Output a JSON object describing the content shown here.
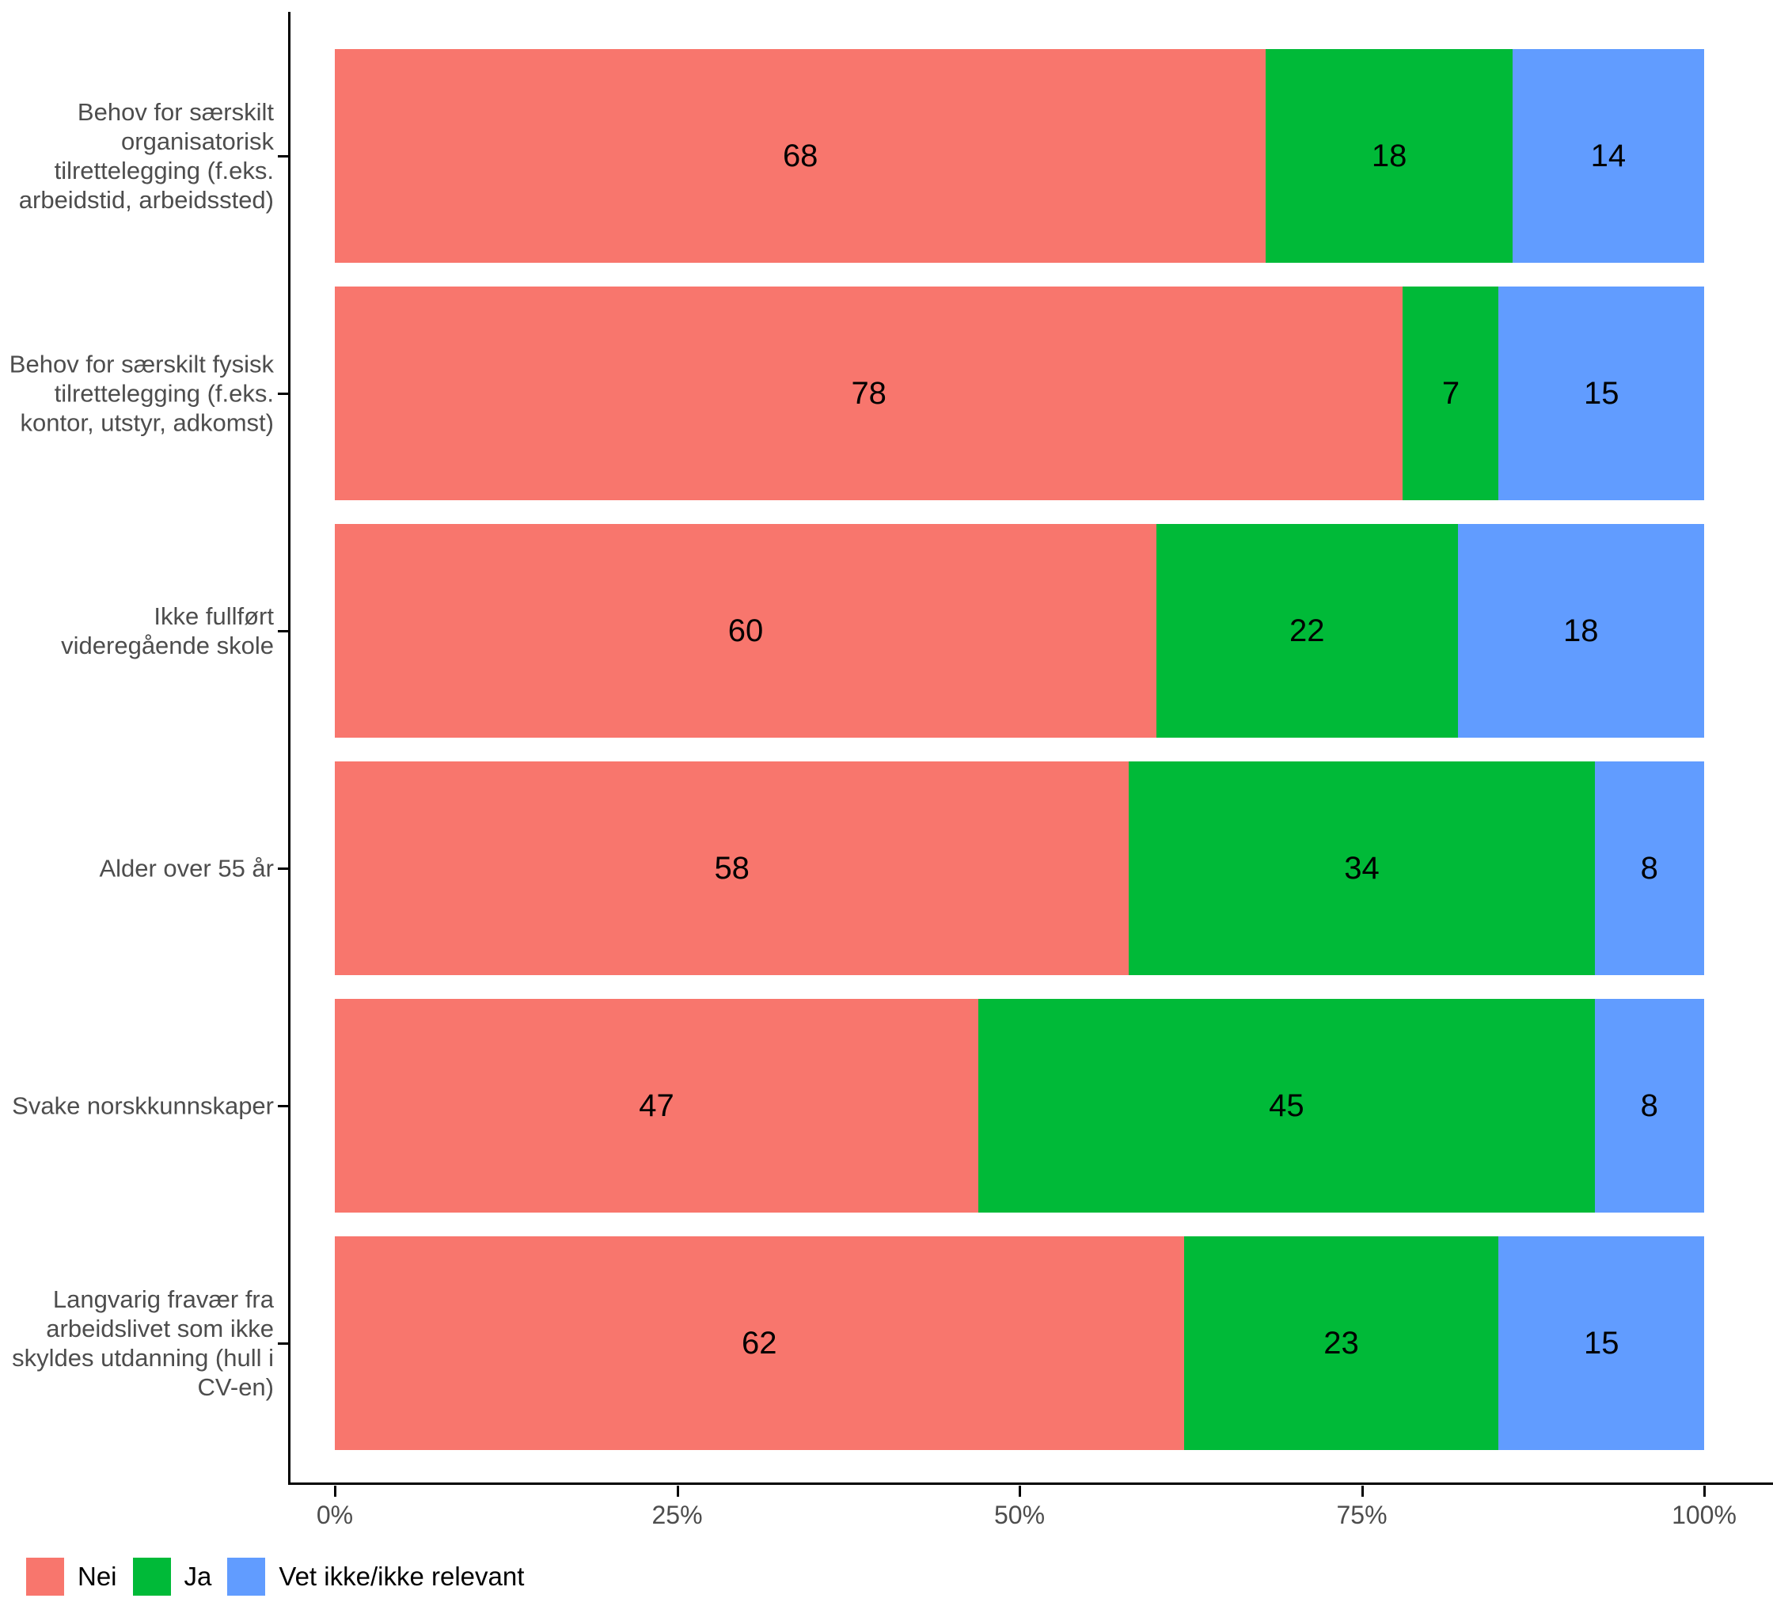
{
  "chart_data": {
    "type": "bar",
    "orientation": "horizontal",
    "stacked": true,
    "unit": "percent",
    "title": "",
    "xlabel": "",
    "ylabel": "",
    "grid": false,
    "categories": [
      "Behov for særskilt organisatorisk tilrettelegging (f.eks. arbeidstid, arbeidssted)",
      "Behov for særskilt fysisk tilrettelegging (f.eks. kontor, utstyr, adkomst)",
      "Ikke fullført videregående skole",
      "Alder over 55 år",
      "Svake norskkunnskaper",
      "Langvarig fravær fra arbeidslivet som ikke skyldes utdanning (hull i CV-en)"
    ],
    "series": [
      {
        "name": "Nei",
        "color": "#F8766D",
        "values": [
          68,
          78,
          60,
          58,
          47,
          62
        ]
      },
      {
        "name": "Ja",
        "color": "#00BA38",
        "values": [
          18,
          7,
          22,
          34,
          45,
          23
        ]
      },
      {
        "name": "Vet ikke/ikke relevant",
        "color": "#619CFF",
        "values": [
          14,
          15,
          18,
          8,
          8,
          15
        ]
      }
    ],
    "x_axis": {
      "range": [
        0,
        100
      ],
      "tick_values": [
        0,
        25,
        50,
        75,
        100
      ],
      "tick_labels": [
        "0%",
        "25%",
        "50%",
        "75%",
        "100%"
      ]
    },
    "legend": {
      "position": "bottom-left",
      "entries": [
        "Nei",
        "Ja",
        "Vet ikke/ikke relevant"
      ]
    }
  },
  "colors": {
    "axis_text": "#4D4D4D",
    "value_text": "#000000",
    "axis_line": "#000000",
    "background": "#FFFFFF"
  }
}
